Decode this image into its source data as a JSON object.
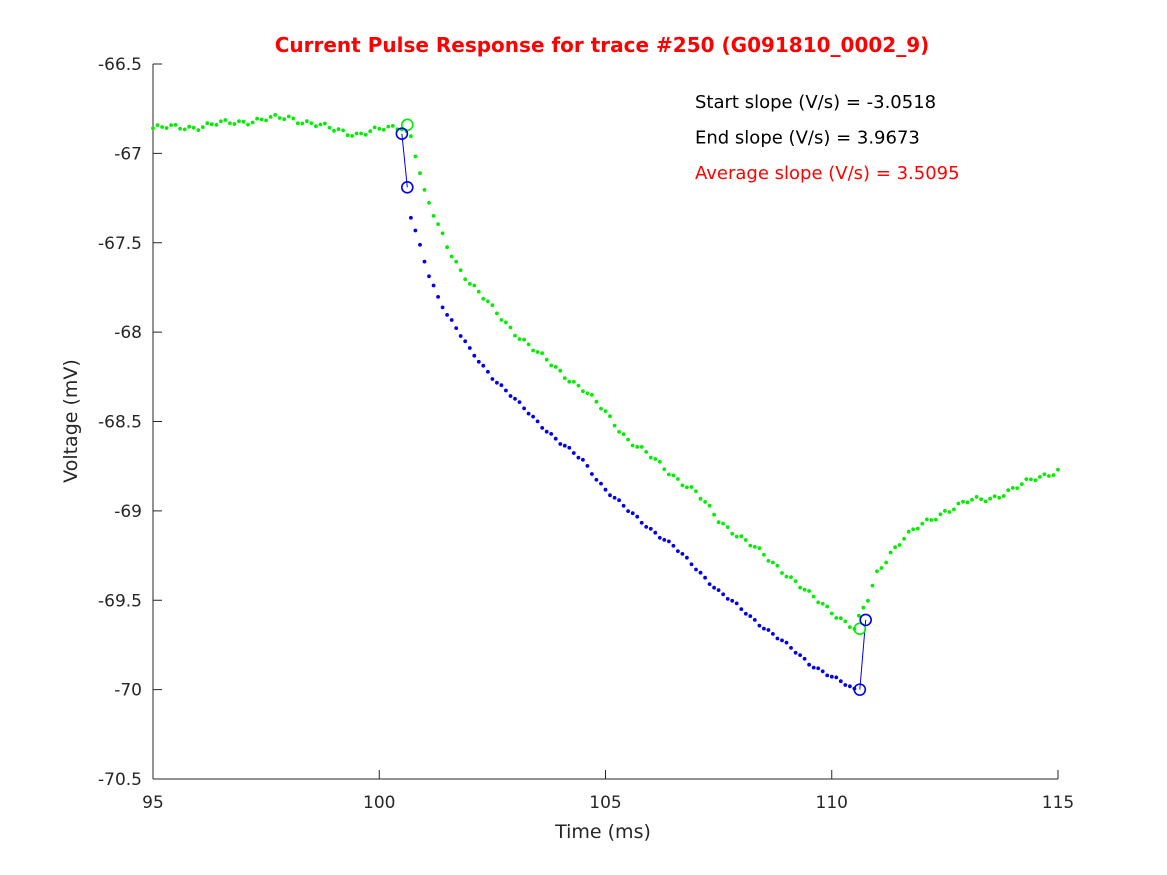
{
  "chart_data": {
    "type": "scatter",
    "title": "Current Pulse Response for trace #250 (G091810_0002_9)",
    "xlabel": "Time (ms)",
    "ylabel": "Voltage (mV)",
    "xlim": [
      95,
      115
    ],
    "ylim": [
      -70.5,
      -66.5
    ],
    "xticks": [
      95,
      100,
      105,
      110,
      115
    ],
    "yticks": [
      -66.5,
      -67,
      -67.5,
      -68,
      -68.5,
      -69,
      -69.5,
      -70,
      -70.5
    ],
    "xtick_labels": [
      "95",
      "100",
      "105",
      "110",
      "115"
    ],
    "ytick_labels": [
      "-66.5",
      "-67",
      "-67.5",
      "-68",
      "-68.5",
      "-69",
      "-69.5",
      "-70",
      "-70.5"
    ],
    "grid": false,
    "colors": {
      "title": "#ff0000",
      "green": "#00ee00",
      "blue": "#0000ee",
      "axis": "#262626",
      "annotation": "#000000",
      "annotation_highlight": "#ff0000"
    },
    "green_trace_keypoints": [
      [
        95.0,
        -66.86
      ],
      [
        96.0,
        -66.85
      ],
      [
        97.0,
        -66.82
      ],
      [
        98.0,
        -66.8
      ],
      [
        98.5,
        -66.83
      ],
      [
        99.0,
        -66.87
      ],
      [
        99.5,
        -66.89
      ],
      [
        100.0,
        -66.87
      ],
      [
        100.5,
        -66.85
      ],
      [
        100.7,
        -66.9
      ],
      [
        100.85,
        -67.05
      ],
      [
        101.0,
        -67.22
      ],
      [
        101.25,
        -67.38
      ],
      [
        101.5,
        -67.52
      ],
      [
        101.8,
        -67.65
      ],
      [
        102.0,
        -67.72
      ],
      [
        102.5,
        -67.87
      ],
      [
        103.0,
        -68.0
      ],
      [
        103.5,
        -68.12
      ],
      [
        104.0,
        -68.22
      ],
      [
        104.5,
        -68.32
      ],
      [
        105.0,
        -68.45
      ],
      [
        105.5,
        -68.6
      ],
      [
        106.0,
        -68.7
      ],
      [
        106.5,
        -68.8
      ],
      [
        107.0,
        -68.9
      ],
      [
        107.5,
        -69.05
      ],
      [
        108.0,
        -69.15
      ],
      [
        108.5,
        -69.25
      ],
      [
        109.0,
        -69.35
      ],
      [
        109.5,
        -69.47
      ],
      [
        110.0,
        -69.56
      ],
      [
        110.5,
        -69.66
      ],
      [
        110.8,
        -69.5
      ],
      [
        111.0,
        -69.35
      ],
      [
        111.3,
        -69.23
      ],
      [
        111.6,
        -69.15
      ],
      [
        112.0,
        -69.08
      ],
      [
        112.5,
        -69.0
      ],
      [
        113.0,
        -68.95
      ],
      [
        113.5,
        -68.93
      ],
      [
        114.0,
        -68.88
      ],
      [
        114.5,
        -68.82
      ],
      [
        115.0,
        -68.77
      ]
    ],
    "blue_trace_keypoints": [
      [
        100.7,
        -67.36
      ],
      [
        100.9,
        -67.52
      ],
      [
        101.1,
        -67.68
      ],
      [
        101.3,
        -67.8
      ],
      [
        101.5,
        -67.9
      ],
      [
        101.8,
        -68.02
      ],
      [
        102.0,
        -68.1
      ],
      [
        102.5,
        -68.25
      ],
      [
        103.0,
        -68.38
      ],
      [
        103.5,
        -68.5
      ],
      [
        104.0,
        -68.62
      ],
      [
        104.5,
        -68.72
      ],
      [
        105.0,
        -68.88
      ],
      [
        105.5,
        -69.0
      ],
      [
        106.0,
        -69.1
      ],
      [
        106.5,
        -69.2
      ],
      [
        107.0,
        -69.32
      ],
      [
        107.5,
        -69.45
      ],
      [
        108.0,
        -69.55
      ],
      [
        108.5,
        -69.65
      ],
      [
        109.0,
        -69.75
      ],
      [
        109.5,
        -69.85
      ],
      [
        110.0,
        -69.93
      ],
      [
        110.5,
        -70.0
      ]
    ],
    "blue_markers": [
      [
        100.5,
        -66.89
      ],
      [
        100.62,
        -67.19
      ],
      [
        110.62,
        -70.0
      ],
      [
        110.75,
        -69.61
      ]
    ],
    "green_markers": [
      [
        100.62,
        -66.84
      ],
      [
        110.62,
        -69.66
      ]
    ],
    "blue_lines": [
      [
        [
          100.5,
          -66.89
        ],
        [
          100.62,
          -67.19
        ]
      ],
      [
        [
          110.62,
          -70.0
        ],
        [
          110.75,
          -69.61
        ]
      ]
    ],
    "annotations": [
      {
        "text": "Start slope (V/s) = -3.0518",
        "color": "#000000"
      },
      {
        "text": "End slope (V/s) = 3.9673",
        "color": "#000000"
      },
      {
        "text": "Average slope (V/s) = 3.5095",
        "color": "#ff0000"
      }
    ]
  }
}
